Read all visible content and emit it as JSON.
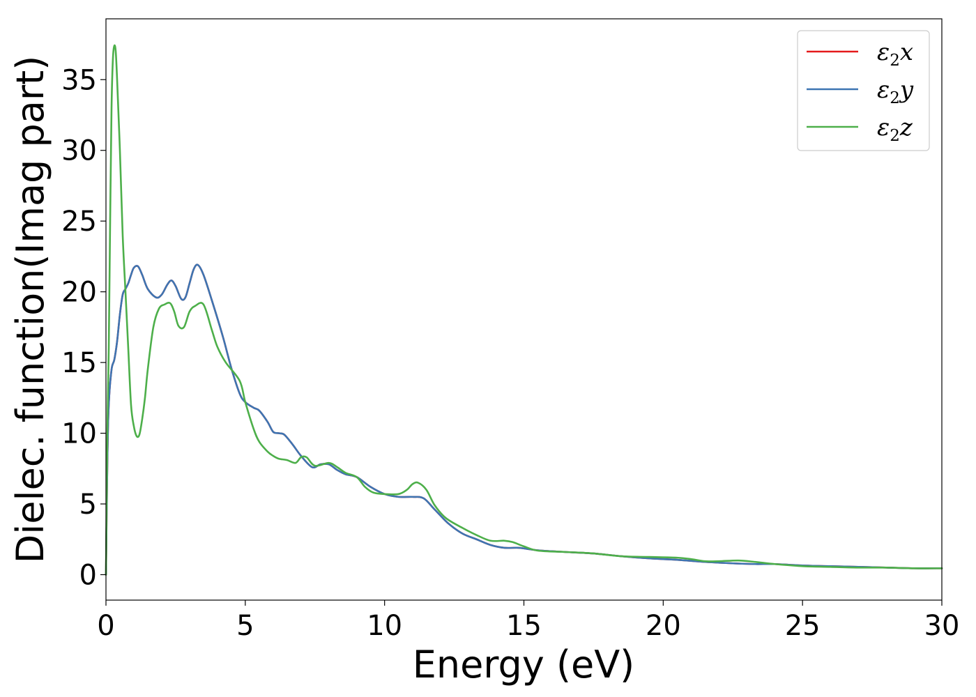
{
  "chart_data": {
    "type": "line",
    "xlabel": "Energy (eV)",
    "ylabel": "Dielec. function(Imag part)",
    "xlim": [
      0,
      30
    ],
    "ylim": [
      -1.8,
      39.3
    ],
    "xticks": [
      0,
      5,
      10,
      15,
      20,
      25,
      30
    ],
    "yticks": [
      0,
      5,
      10,
      15,
      20,
      25,
      30,
      35
    ],
    "grid": false,
    "legend_position": "top-right",
    "series": [
      {
        "name": "ε2x",
        "legend_base": "ε",
        "legend_sub": "2",
        "legend_suffix": "x",
        "color": "#e41a1c",
        "x": [
          0,
          0.05,
          0.1,
          0.2,
          0.3,
          0.4,
          0.5,
          0.6,
          0.7,
          0.8,
          0.9,
          1.0,
          1.15,
          1.3,
          1.5,
          1.8,
          2.0,
          2.2,
          2.35,
          2.5,
          2.7,
          2.85,
          3.0,
          3.15,
          3.3,
          3.5,
          3.8,
          4.2,
          4.5,
          4.8,
          5.0,
          5.3,
          5.5,
          5.8,
          6.0,
          6.2,
          6.4,
          6.7,
          7.0,
          7.4,
          7.7,
          8.0,
          8.3,
          8.6,
          9.0,
          9.5,
          10.0,
          10.5,
          11.0,
          11.4,
          11.8,
          12.3,
          12.8,
          13.3,
          13.8,
          14.3,
          14.8,
          15.2,
          15.6,
          16.5,
          17.5,
          18.5,
          19.5,
          20.5,
          21.5,
          22.5,
          23.3,
          24.0,
          25.0,
          26.0,
          27.0,
          28.0,
          29.0,
          30.0
        ],
        "values": [
          0,
          8,
          12,
          14.5,
          15.2,
          16.5,
          18.4,
          19.8,
          20.2,
          20.6,
          21.2,
          21.7,
          21.8,
          21.2,
          20.2,
          19.6,
          19.8,
          20.5,
          20.8,
          20.4,
          19.5,
          19.6,
          20.6,
          21.6,
          21.9,
          21.2,
          19.4,
          16.8,
          14.6,
          12.8,
          12.2,
          11.8,
          11.6,
          10.8,
          10.1,
          10.0,
          9.9,
          9.2,
          8.4,
          7.6,
          7.8,
          7.8,
          7.4,
          7.1,
          6.9,
          6.2,
          5.7,
          5.5,
          5.5,
          5.4,
          4.6,
          3.6,
          2.9,
          2.5,
          2.1,
          1.9,
          1.9,
          1.8,
          1.7,
          1.6,
          1.5,
          1.3,
          1.15,
          1.05,
          0.9,
          0.8,
          0.75,
          0.75,
          0.65,
          0.6,
          0.55,
          0.5,
          0.45,
          0.45
        ]
      },
      {
        "name": "ε2y",
        "legend_base": "ε",
        "legend_sub": "2",
        "legend_suffix": "y",
        "color": "#3d75b2",
        "x": [
          0,
          0.05,
          0.1,
          0.2,
          0.3,
          0.4,
          0.5,
          0.6,
          0.7,
          0.8,
          0.9,
          1.0,
          1.15,
          1.3,
          1.5,
          1.8,
          2.0,
          2.2,
          2.35,
          2.5,
          2.7,
          2.85,
          3.0,
          3.15,
          3.3,
          3.5,
          3.8,
          4.2,
          4.5,
          4.8,
          5.0,
          5.3,
          5.5,
          5.8,
          6.0,
          6.2,
          6.4,
          6.7,
          7.0,
          7.4,
          7.7,
          8.0,
          8.3,
          8.6,
          9.0,
          9.5,
          10.0,
          10.5,
          11.0,
          11.4,
          11.8,
          12.3,
          12.8,
          13.3,
          13.8,
          14.3,
          14.8,
          15.2,
          15.6,
          16.5,
          17.5,
          18.5,
          19.5,
          20.5,
          21.5,
          22.5,
          23.3,
          24.0,
          25.0,
          26.0,
          27.0,
          28.0,
          29.0,
          30.0
        ],
        "values": [
          0,
          8,
          12,
          14.5,
          15.2,
          16.5,
          18.4,
          19.8,
          20.2,
          20.6,
          21.2,
          21.7,
          21.8,
          21.2,
          20.2,
          19.6,
          19.8,
          20.5,
          20.8,
          20.4,
          19.5,
          19.6,
          20.6,
          21.6,
          21.9,
          21.2,
          19.4,
          16.8,
          14.6,
          12.8,
          12.2,
          11.8,
          11.6,
          10.8,
          10.1,
          10.0,
          9.9,
          9.2,
          8.4,
          7.6,
          7.8,
          7.8,
          7.4,
          7.1,
          6.9,
          6.2,
          5.7,
          5.5,
          5.5,
          5.4,
          4.6,
          3.6,
          2.9,
          2.5,
          2.1,
          1.9,
          1.9,
          1.8,
          1.7,
          1.6,
          1.5,
          1.3,
          1.15,
          1.05,
          0.9,
          0.8,
          0.75,
          0.75,
          0.65,
          0.6,
          0.55,
          0.5,
          0.45,
          0.45
        ]
      },
      {
        "name": "ε2z",
        "legend_base": "ε",
        "legend_sub": "2",
        "legend_suffix": "z",
        "color": "#4daf4a",
        "x": [
          0,
          0.05,
          0.1,
          0.15,
          0.2,
          0.25,
          0.3,
          0.35,
          0.4,
          0.5,
          0.6,
          0.7,
          0.8,
          0.9,
          1.0,
          1.1,
          1.2,
          1.3,
          1.4,
          1.5,
          1.7,
          1.9,
          2.1,
          2.3,
          2.45,
          2.6,
          2.8,
          3.0,
          3.2,
          3.5,
          3.8,
          4.0,
          4.3,
          4.8,
          5.0,
          5.3,
          5.5,
          5.8,
          6.0,
          6.2,
          6.5,
          6.8,
          7.0,
          7.2,
          7.5,
          8.0,
          8.3,
          8.6,
          9.0,
          9.3,
          9.6,
          10.0,
          10.5,
          10.8,
          11.0,
          11.2,
          11.5,
          11.8,
          12.2,
          12.8,
          13.3,
          13.8,
          14.3,
          14.6,
          15.0,
          15.5,
          16.5,
          17.5,
          18.5,
          19.5,
          20.5,
          21.0,
          21.5,
          22.0,
          22.7,
          23.3,
          24.0,
          25.0,
          26.0,
          27.0,
          28.0,
          29.0,
          30.0
        ],
        "values": [
          0,
          10,
          16,
          25,
          33,
          36.5,
          37.4,
          37,
          35,
          30,
          24,
          20,
          16,
          12,
          10.5,
          9.8,
          9.9,
          11,
          12.5,
          14.5,
          17.5,
          18.8,
          19.1,
          19.2,
          18.6,
          17.6,
          17.5,
          18.6,
          19.0,
          19.1,
          17.3,
          16.1,
          15.0,
          13.7,
          12.2,
          10.3,
          9.4,
          8.7,
          8.4,
          8.2,
          8.1,
          7.9,
          8.3,
          8.3,
          7.7,
          7.9,
          7.6,
          7.2,
          6.9,
          6.2,
          5.8,
          5.7,
          5.7,
          6.0,
          6.4,
          6.5,
          6.0,
          4.9,
          4.0,
          3.3,
          2.8,
          2.4,
          2.4,
          2.3,
          2.0,
          1.7,
          1.6,
          1.5,
          1.3,
          1.25,
          1.2,
          1.1,
          0.95,
          0.95,
          1.0,
          0.9,
          0.75,
          0.6,
          0.55,
          0.5,
          0.5,
          0.45,
          0.45
        ]
      }
    ]
  }
}
